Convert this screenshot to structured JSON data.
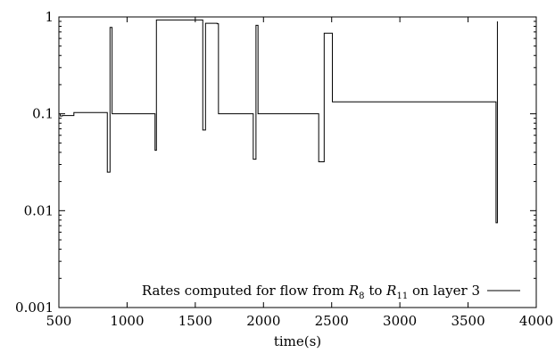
{
  "chart_data": {
    "type": "line",
    "title": "",
    "xlabel": "time(s)",
    "ylabel": "",
    "xlim": [
      500,
      4000
    ],
    "ylim": [
      0.001,
      1
    ],
    "y_scale": "log",
    "grid": false,
    "legend_position": "bottom-right",
    "x_ticks": [
      500,
      1000,
      1500,
      2000,
      2500,
      3000,
      3500,
      4000
    ],
    "x_tick_labels": [
      "500",
      "1000",
      "1500",
      "2000",
      "2500",
      "3000",
      "3500",
      "4000"
    ],
    "y_ticks": [
      0.001,
      0.01,
      0.1,
      1
    ],
    "y_tick_labels": [
      "0.001",
      "0.01",
      "0.1",
      "1"
    ],
    "legend": {
      "prefix": "Rates computed for flow from ",
      "var1": "R",
      "sub1": "8",
      "middle": " to ",
      "var2": "R",
      "sub2": "11",
      "suffix": " on layer 3"
    },
    "series": [
      {
        "name": "Rates computed for flow from R8 to R11 on layer 3",
        "color": "#000000",
        "x": [
          510,
          510,
          525,
          525,
          610,
          610,
          855,
          855,
          875,
          875,
          890,
          890,
          1205,
          1205,
          1215,
          1215,
          1555,
          1555,
          1575,
          1575,
          1660,
          1660,
          1670,
          1670,
          1925,
          1925,
          1945,
          1945,
          1960,
          1960,
          2405,
          2405,
          2445,
          2445,
          2505,
          2505,
          3705,
          3705,
          3715,
          3715
        ],
        "y": [
          0.1,
          0.095,
          0.095,
          0.096,
          0.096,
          0.103,
          0.103,
          0.025,
          0.025,
          0.78,
          0.78,
          0.1,
          0.1,
          0.042,
          0.042,
          0.93,
          0.93,
          0.068,
          0.068,
          0.86,
          0.86,
          0.85,
          0.85,
          0.1,
          0.1,
          0.034,
          0.034,
          0.82,
          0.82,
          0.1,
          0.1,
          0.032,
          0.032,
          0.68,
          0.68,
          0.133,
          0.133,
          0.0075,
          0.0075,
          0.9
        ]
      }
    ]
  }
}
